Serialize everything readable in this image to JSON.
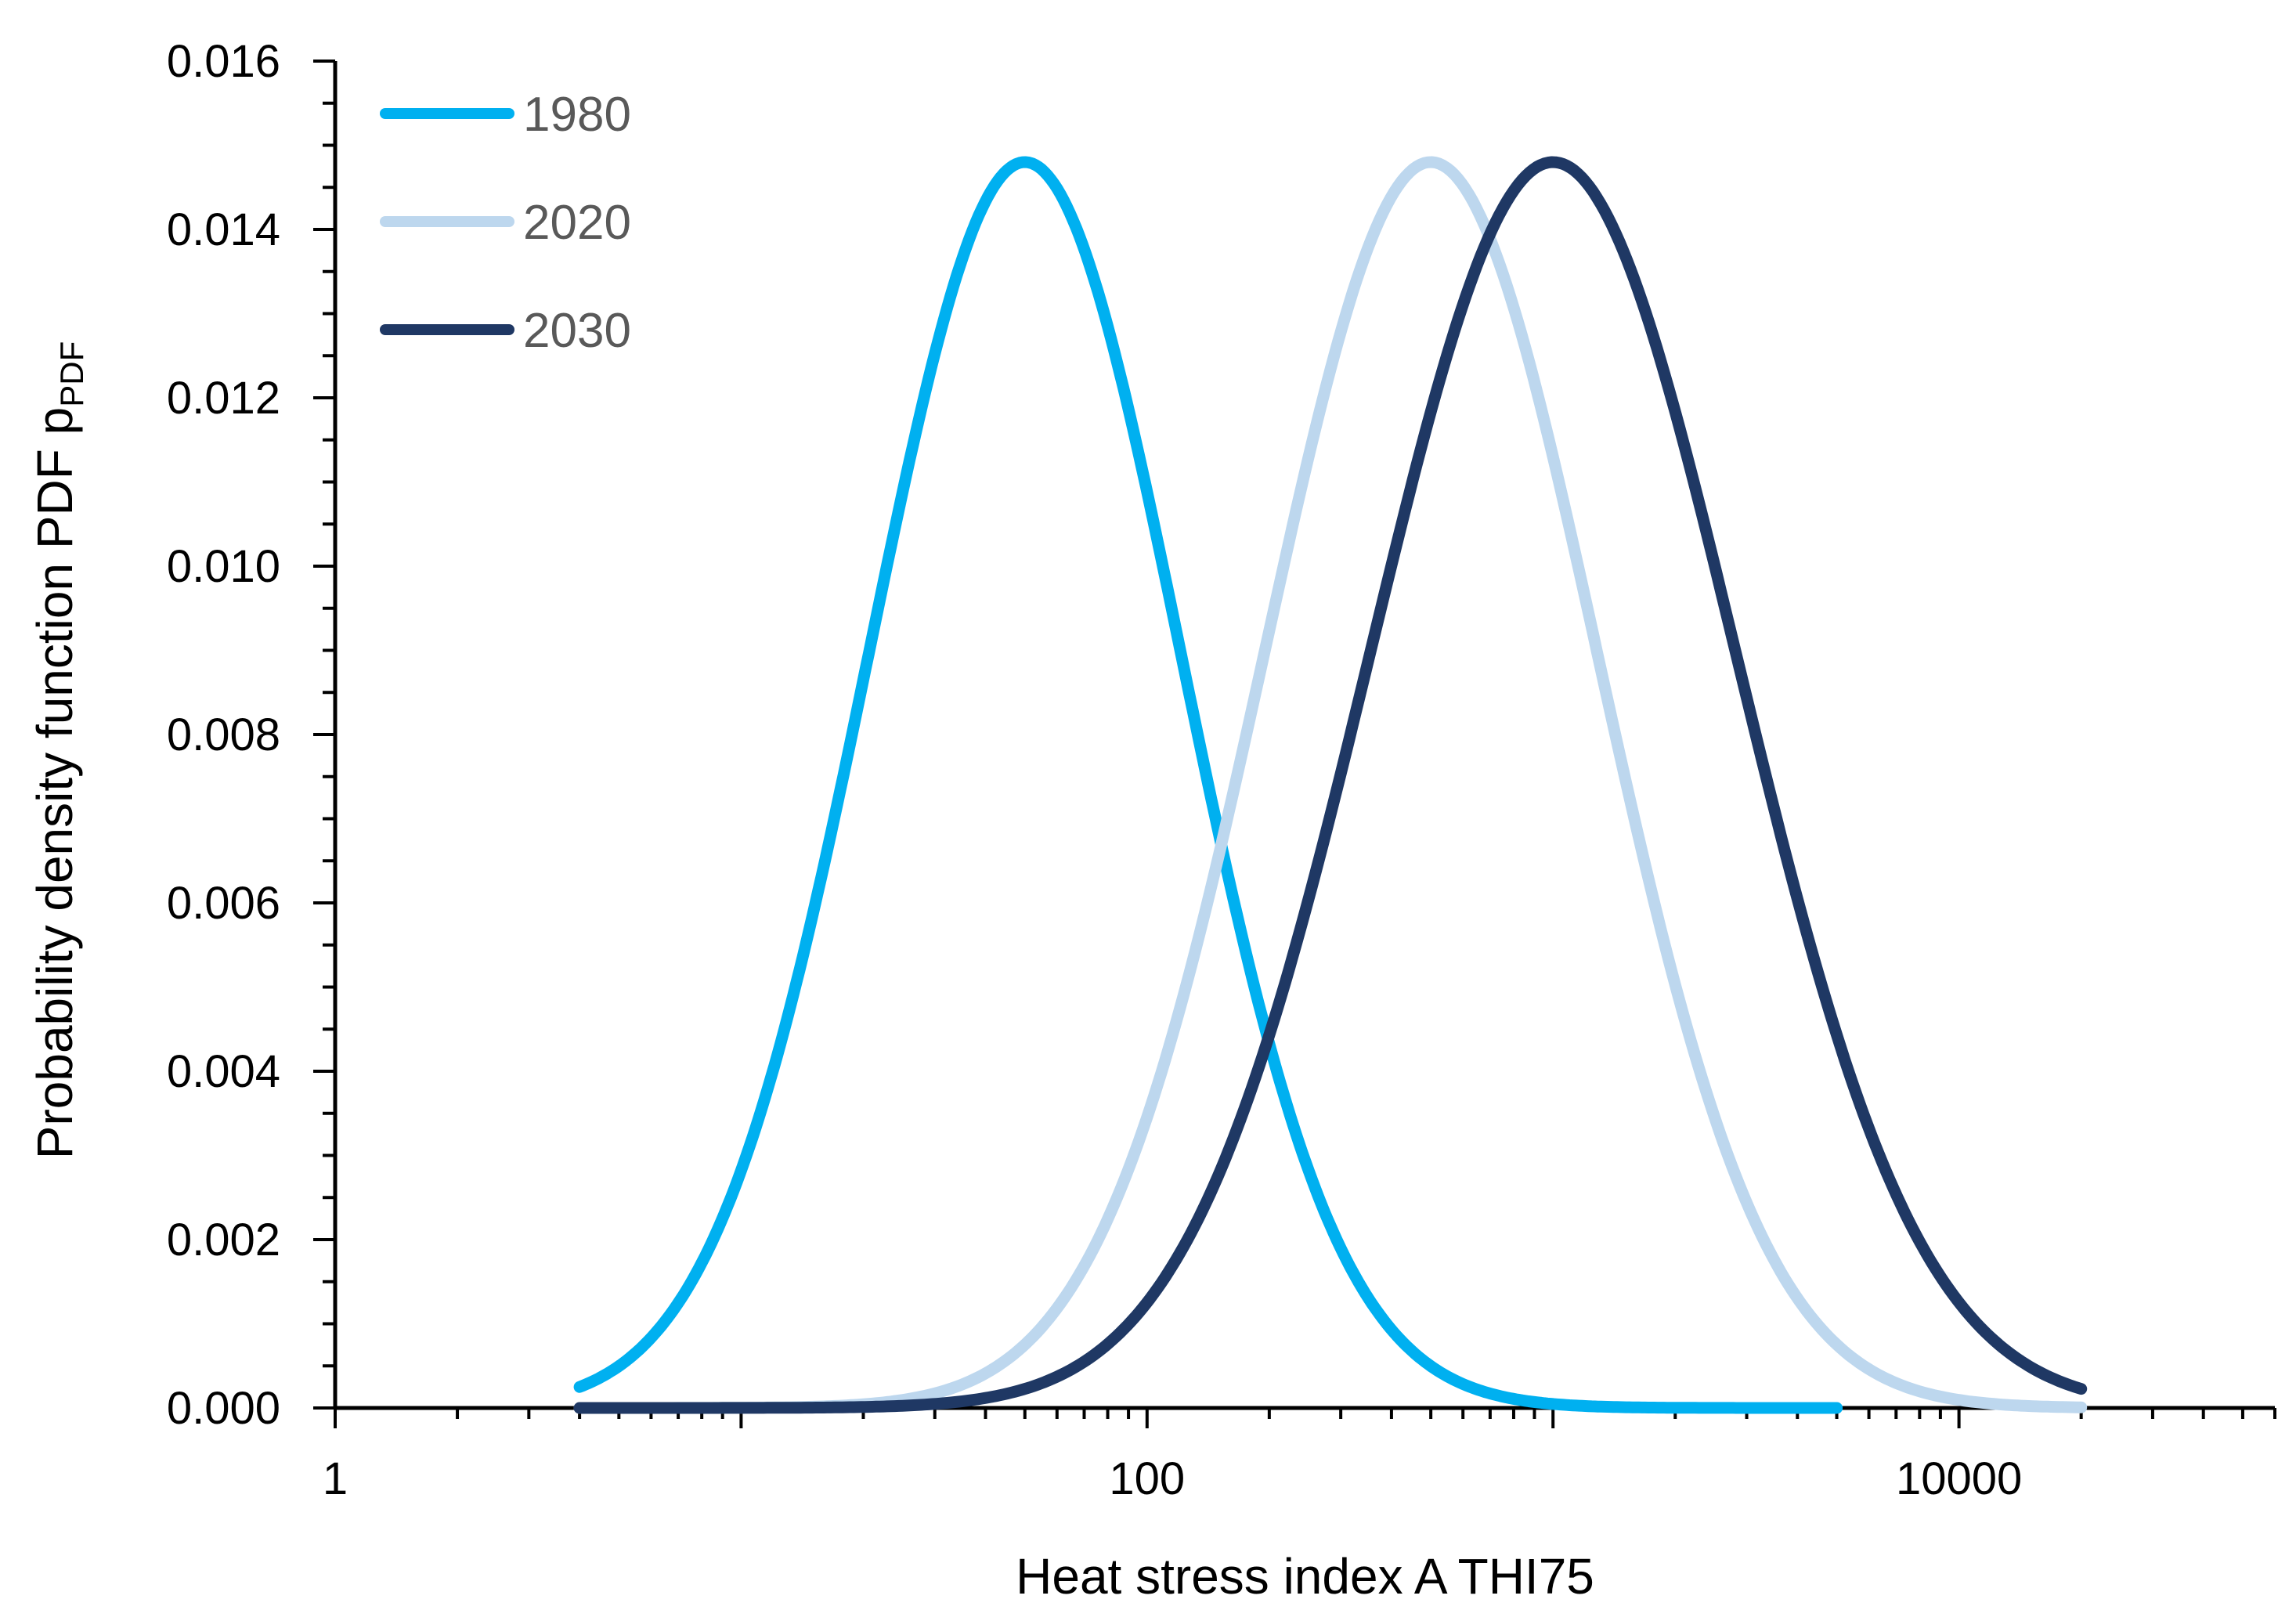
{
  "chart_data": {
    "type": "line",
    "xlabel": "Heat stress index  A THI75",
    "ylabel": "Probability density function PDF p",
    "ylabel_subscript": "PDF",
    "x_scale": "log",
    "xlim": [
      1,
      60000
    ],
    "ylim": [
      0,
      0.016
    ],
    "x_ticks": [
      {
        "value": 1,
        "label": "1"
      },
      {
        "value": 100,
        "label": "100"
      },
      {
        "value": 10000,
        "label": "10000"
      }
    ],
    "y_ticks": [
      {
        "value": 0.0,
        "label": "0.000"
      },
      {
        "value": 0.002,
        "label": "0.002"
      },
      {
        "value": 0.004,
        "label": "0.004"
      },
      {
        "value": 0.006,
        "label": "0.006"
      },
      {
        "value": 0.008,
        "label": "0.008"
      },
      {
        "value": 0.01,
        "label": "0.010"
      },
      {
        "value": 0.012,
        "label": "0.012"
      },
      {
        "value": 0.014,
        "label": "0.014"
      },
      {
        "value": 0.016,
        "label": "0.016"
      }
    ],
    "grid": false,
    "legend_position": "top-left",
    "series": [
      {
        "name": "1980",
        "color": "#00B0F0",
        "x": [
          4,
          6,
          10,
          15,
          20,
          30,
          40,
          50,
          70,
          100,
          150,
          200,
          300,
          500,
          1000,
          2000,
          3000,
          5000
        ],
        "y": [
          0.0004,
          0.0012,
          0.0034,
          0.0062,
          0.0092,
          0.0128,
          0.0145,
          0.0148,
          0.0135,
          0.0104,
          0.0059,
          0.0041,
          0.0016,
          0.0006,
          0.0001,
          0.0,
          0.0,
          0.0
        ]
      },
      {
        "name": "2020",
        "color": "#BDD7EE",
        "x": [
          4,
          10,
          20,
          50,
          100,
          150,
          200,
          300,
          400,
          500,
          600,
          800,
          1000,
          1500,
          2000,
          3000,
          5000,
          10000,
          20000
        ],
        "y": [
          0.0,
          0.0,
          0.0,
          0.0005,
          0.0035,
          0.0063,
          0.0091,
          0.0127,
          0.0143,
          0.0148,
          0.0146,
          0.0131,
          0.0108,
          0.0075,
          0.0052,
          0.0027,
          0.0011,
          0.0002,
          0.0
        ]
      },
      {
        "name": "2030",
        "color": "#1F3864",
        "x": [
          4,
          10,
          20,
          50,
          100,
          150,
          200,
          300,
          500,
          700,
          1000,
          1500,
          2000,
          3000,
          5000,
          10000,
          20000
        ],
        "y": [
          0.0,
          0.0,
          0.0,
          0.0001,
          0.0013,
          0.0029,
          0.0048,
          0.0083,
          0.0125,
          0.0145,
          0.0148,
          0.0133,
          0.0114,
          0.008,
          0.0042,
          0.0011,
          0.0001
        ]
      }
    ]
  }
}
